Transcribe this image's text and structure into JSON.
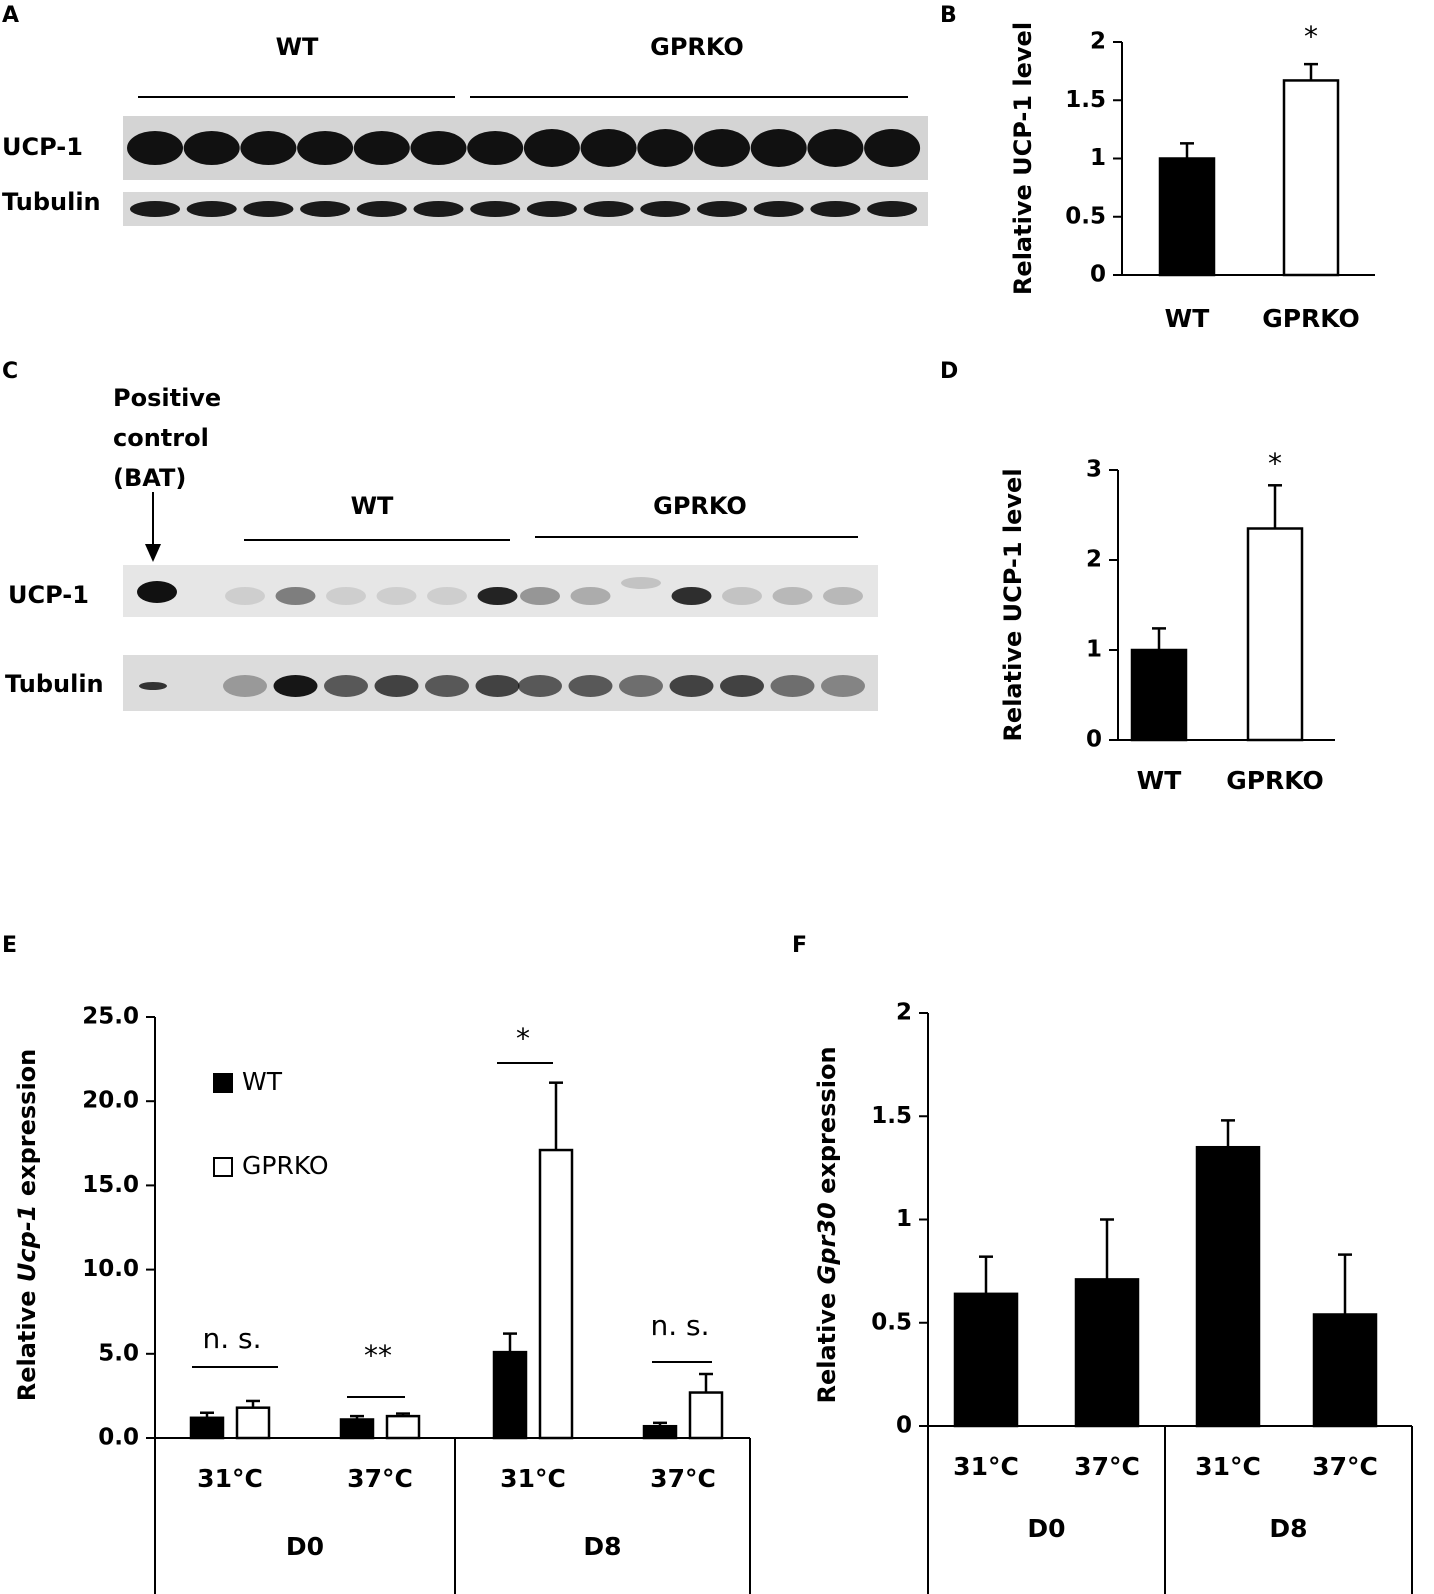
{
  "panels": [
    "A",
    "B",
    "C",
    "D",
    "E",
    "F"
  ],
  "blots": [
    {
      "groups": [
        "WT",
        "GPRKO"
      ],
      "rows": [
        "UCP-1",
        "Tubulin"
      ]
    },
    {
      "groups": [
        "WT",
        "GPRKO"
      ],
      "rows": [
        "UCP-1",
        "Tubulin"
      ],
      "marker": [
        "Positive",
        "control",
        "(BAT)"
      ]
    }
  ],
  "chart_data": [
    {
      "type": "bar",
      "ylabel": [
        "Relative",
        "UCP-1",
        "level"
      ],
      "categories": [
        "WT",
        "GPRKO"
      ],
      "values": [
        1.0,
        1.67
      ],
      "errors": [
        0.13,
        0.14
      ],
      "colors": [
        "#000000",
        "#ffffff"
      ],
      "ylim": [
        0,
        2
      ],
      "yticks": [
        0,
        0.5,
        1,
        1.5,
        2
      ],
      "annotations": [
        "*"
      ]
    },
    {
      "type": "bar",
      "ylabel": [
        "Relative",
        "UCP-1",
        "level"
      ],
      "categories": [
        "WT",
        "GPRKO"
      ],
      "values": [
        1.0,
        2.35
      ],
      "errors": [
        0.24,
        0.48
      ],
      "colors": [
        "#000000",
        "#ffffff"
      ],
      "ylim": [
        0,
        3
      ],
      "yticks": [
        0,
        1,
        2,
        3
      ],
      "annotations": [
        "*"
      ]
    },
    {
      "type": "bar",
      "ylabel": [
        "Relative",
        "Ucp-1",
        "expression"
      ],
      "categories": [
        "31°C",
        "37°C",
        "31°C",
        "37°C"
      ],
      "groups": [
        "D0",
        "D8"
      ],
      "series": [
        {
          "name": "WT",
          "color": "#000000",
          "values": [
            1.2,
            1.1,
            5.1,
            0.7
          ],
          "errors": [
            0.3,
            0.2,
            1.1,
            0.2
          ]
        },
        {
          "name": "GPRKO",
          "color": "#ffffff",
          "values": [
            1.8,
            1.3,
            17.1,
            2.7
          ],
          "errors": [
            0.4,
            0.15,
            4.0,
            1.1
          ]
        }
      ],
      "ylim": [
        0,
        25
      ],
      "yticks": [
        {
          "value": 0,
          "label": "0.0"
        },
        {
          "value": 5,
          "label": "5.0"
        },
        {
          "value": 10,
          "label": "10.0"
        },
        {
          "value": 15,
          "label": "15.0"
        },
        {
          "value": 20,
          "label": "20.0"
        },
        {
          "value": 25,
          "label": "25.0"
        }
      ],
      "annotations": [
        "n. s.",
        "**",
        "*",
        "n. s."
      ]
    },
    {
      "type": "bar",
      "ylabel": [
        "Relative",
        "Gpr30",
        "expression"
      ],
      "categories": [
        "31°C",
        "37°C",
        "31°C",
        "37°C"
      ],
      "groups": [
        "D0",
        "D8"
      ],
      "values": [
        0.64,
        0.71,
        1.35,
        0.54
      ],
      "errors": [
        0.18,
        0.29,
        0.13,
        0.29
      ],
      "colors": [
        "#000000",
        "#000000",
        "#000000",
        "#000000"
      ],
      "ylim": [
        0,
        2
      ],
      "yticks": [
        0,
        0.5,
        1,
        1.5,
        2
      ]
    }
  ]
}
